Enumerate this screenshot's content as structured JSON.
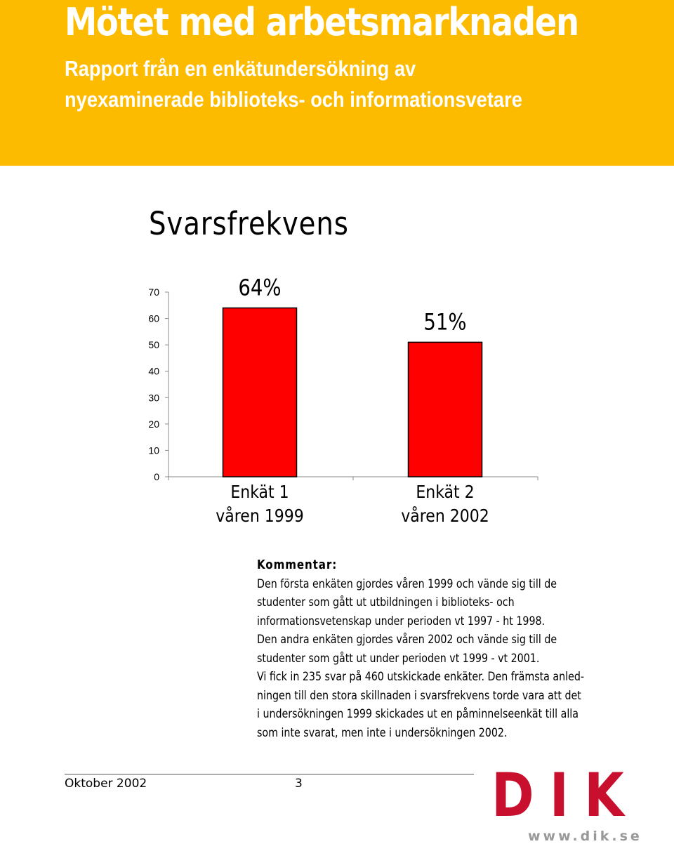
{
  "header": {
    "title": "Mötet med arbetsmarknaden",
    "subtitle_line1": "Rapport från en enkätundersökning av",
    "subtitle_line2": "nyexaminerade biblioteks- och informationsvetare"
  },
  "section_title": "Svarsfrekvens",
  "chart_data": {
    "type": "bar",
    "categories": [
      [
        "Enkät 1",
        "våren 1999"
      ],
      [
        "Enkät 2",
        "våren 2002"
      ]
    ],
    "values": [
      64,
      51
    ],
    "data_labels": [
      "64%",
      "51%"
    ],
    "ylim": [
      0,
      70
    ],
    "yticks": [
      0,
      10,
      20,
      30,
      40,
      50,
      60,
      70
    ],
    "bar_color": "#ff0000",
    "grid": false,
    "legend": "none"
  },
  "comment": {
    "heading": "Kommentar:",
    "lines": [
      "Den första enkäten gjordes våren 1999 och vände sig till de",
      "studenter som gått ut utbildningen i biblioteks- och",
      "informationsvetenskap under perioden vt 1997 - ht 1998.",
      "Den andra enkäten gjordes våren 2002 och vände sig till de",
      "studenter som gått ut under perioden vt 1999 - vt 2001.",
      "Vi fick in 235 svar på 460 utskickade enkäter. Den främsta anled-",
      "ningen till den stora skillnaden i svarsfrekvens torde vara att det",
      "i undersökningen 1999 skickades ut en påminnelseenkät till alla",
      "som inte svarat, men inte i undersökningen 2002."
    ]
  },
  "footer": {
    "date": "Oktober 2002",
    "page": "3"
  },
  "logo": {
    "text": "DIK",
    "url": "www.dik.se",
    "color": "#c8102e"
  },
  "colors": {
    "header_bg": "#fdbb00",
    "header_text": "#ffffff"
  }
}
